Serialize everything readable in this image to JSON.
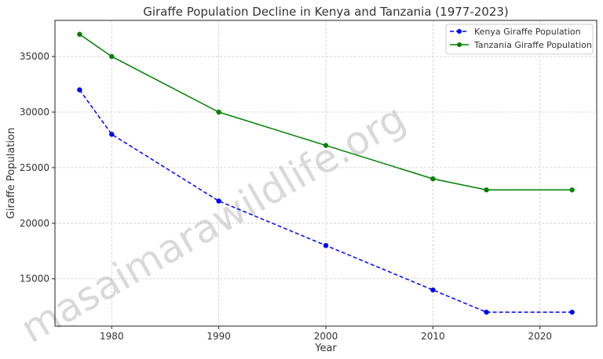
{
  "chart_data": {
    "type": "line",
    "title": "Giraffe Population Decline in Kenya and Tanzania (1977-2023)",
    "xlabel": "Year",
    "ylabel": "Giraffe Population",
    "x": [
      1977,
      1980,
      1990,
      2000,
      2010,
      2015,
      2023
    ],
    "xlim": [
      1974.7,
      2025.3
    ],
    "ylim": [
      10750,
      38250
    ],
    "xticks": [
      1980,
      1990,
      2000,
      2010,
      2020
    ],
    "yticks": [
      15000,
      20000,
      25000,
      30000,
      35000
    ],
    "grid": true,
    "legend_position": "top-right",
    "series": [
      {
        "name": "Kenya Giraffe Population",
        "color": "#0000ff",
        "dash": "dashed",
        "values": [
          32000,
          28000,
          22000,
          18000,
          14000,
          12000,
          12000
        ]
      },
      {
        "name": "Tanzania Giraffe Population",
        "color": "#008000",
        "dash": "solid",
        "values": [
          37000,
          35000,
          30000,
          27000,
          24000,
          23000,
          23000
        ]
      }
    ]
  },
  "watermark": "masaimarawildlife.org"
}
